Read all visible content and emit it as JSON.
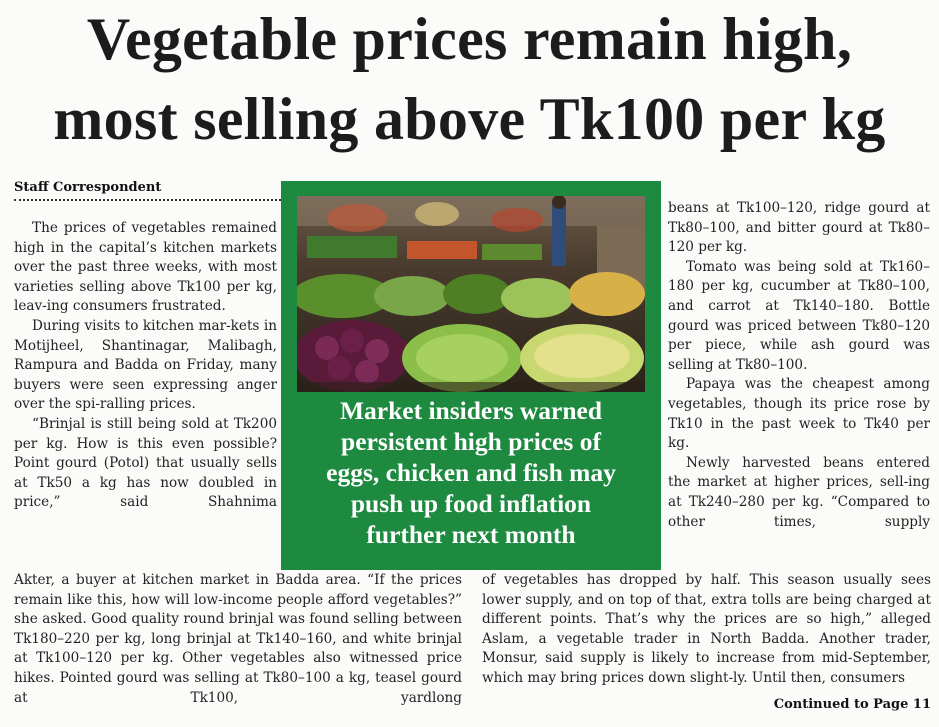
{
  "headline": {
    "line1": "Vegetable prices remain high,",
    "line2": "most selling above Tk100 per kg"
  },
  "byline": "Staff Correspondent",
  "pullquote": [
    "Market insiders warned",
    "persistent high prices of",
    "eggs, chicken and fish may",
    "push up food inflation",
    "further next month"
  ],
  "col1": [
    "The prices of vegetables remained high in the capital’s kitchen markets over the past three weeks, with most varieties selling above Tk100 per kg, leav-ing consumers frustrated.",
    "During visits to kitchen mar-kets in Motijheel, Shantinagar, Malibagh, Rampura and Badda on Friday, many buyers were seen expressing anger over the spi-ralling prices.",
    "“Brinjal is still being sold at Tk200 per kg. How is this even possible? Point gourd (Potol) that usually sells at Tk50 a kg has now doubled in price,” said Shahnima"
  ],
  "col2_bottom": "Akter, a buyer at kitchen market in Badda area. “If the prices remain like this, how will low-income people afford vegetables?” she asked. Good quality round brinjal was found selling between Tk180–220 per kg, long brinjal at Tk140–160, and white brinjal at Tk100–120 per kg. Other vegetables also witnessed price hikes. Pointed gourd was selling at Tk80–100 a kg, teasel gourd at Tk100, yardlong",
  "col3": [
    "beans at Tk100–120, ridge gourd at Tk80–100, and bitter gourd at Tk80–120 per kg.",
    "Tomato was being sold at Tk160–180 per kg, cucumber at Tk80–100, and carrot at Tk140–180. Bottle gourd was priced between Tk80–120 per piece, while ash gourd was selling at Tk80–100.",
    "Papaya was the cheapest among vegetables, though its price rose by Tk10 in the past week to Tk40 per kg.",
    "Newly harvested beans entered the market at higher prices, sell-ing at Tk240–280 per kg. “Compared to other times, supply"
  ],
  "col3_bottom": "of vegetables has dropped by half. This season usually sees lower supply, and on top of that, extra tolls are being charged at different points. That’s why the prices are so high,” alleged Aslam, a vegetable trader in North Badda. Another trader, Monsur, said supply is likely to increase from mid-September, which may bring prices down slight-ly. Until then, consumers",
  "continued": "Continued to Page 11",
  "colors": {
    "box_green": "#1d8a3f",
    "ink": "#222222"
  }
}
